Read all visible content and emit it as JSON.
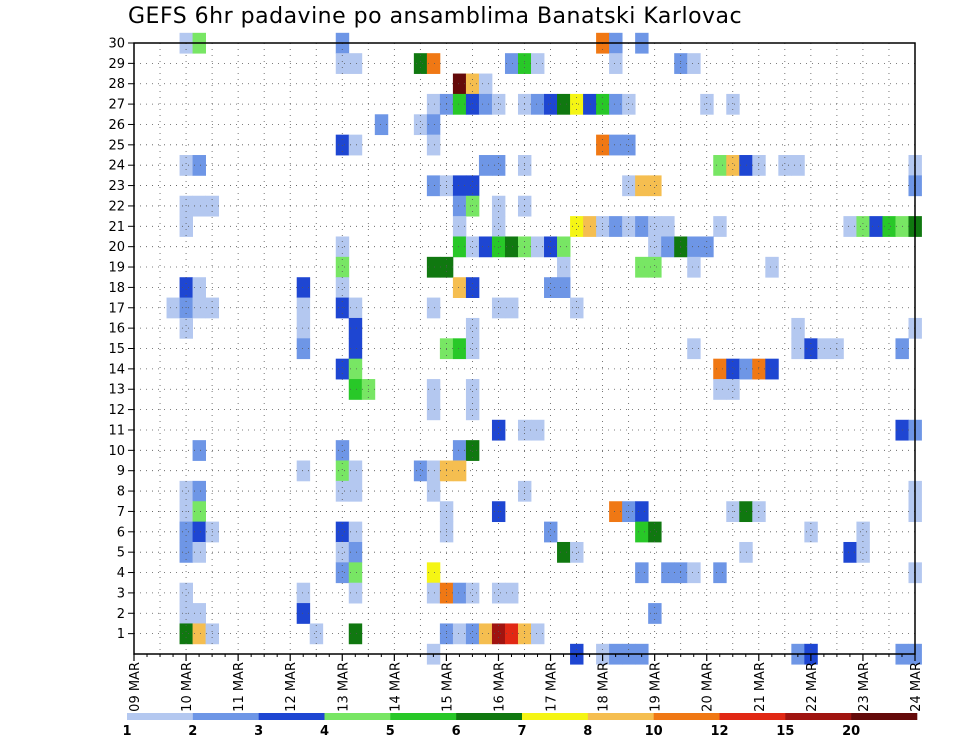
{
  "chart_data": {
    "type": "heatmap",
    "title": "GEFS 6hr padavine po ansamblima Banatski Karlovac",
    "x_tick_labels": [
      "09 MAR",
      "10 MAR",
      "11 MAR",
      "12 MAR",
      "13 MAR",
      "14 MAR",
      "15 MAR",
      "16 MAR",
      "17 MAR",
      "18 MAR",
      "19 MAR",
      "20 MAR",
      "21 MAR",
      "22 MAR",
      "23 MAR",
      "24 MAR"
    ],
    "x_units": "6-hour steps since 09 MAR 00Z",
    "xlim": [
      0,
      60
    ],
    "y_tick_labels": [
      "1",
      "2",
      "3",
      "4",
      "5",
      "6",
      "7",
      "8",
      "9",
      "10",
      "11",
      "12",
      "13",
      "14",
      "15",
      "16",
      "17",
      "18",
      "19",
      "20",
      "21",
      "22",
      "23",
      "24",
      "25",
      "26",
      "27",
      "28",
      "29",
      "30"
    ],
    "ylim": [
      0,
      30
    ],
    "grid": true,
    "colorbar": {
      "labels": [
        "1",
        "2",
        "3",
        "4",
        "5",
        "6",
        "7",
        "8",
        "10",
        "12",
        "15",
        "20"
      ],
      "colors": [
        "#b4c8f0",
        "#6e96e6",
        "#1e46d2",
        "#78e664",
        "#28c828",
        "#107810",
        "#f5f514",
        "#f5be50",
        "#f07814",
        "#e12814",
        "#a01410",
        "#640a0a"
      ]
    },
    "cells_format": "[x_step, member, color_class] with color_class 1..12 per colorbar",
    "cells": [
      [
        4,
        30,
        1
      ],
      [
        5,
        30,
        4
      ],
      [
        16,
        30,
        2
      ],
      [
        36,
        30,
        9
      ],
      [
        37,
        30,
        2
      ],
      [
        39,
        30,
        2
      ],
      [
        16,
        29,
        1
      ],
      [
        17,
        29,
        1
      ],
      [
        22,
        29,
        6
      ],
      [
        23,
        29,
        9
      ],
      [
        29,
        29,
        2
      ],
      [
        30,
        29,
        5
      ],
      [
        31,
        29,
        1
      ],
      [
        37,
        29,
        1
      ],
      [
        42,
        29,
        2
      ],
      [
        43,
        29,
        1
      ],
      [
        25,
        28,
        12
      ],
      [
        26,
        28,
        8
      ],
      [
        27,
        28,
        1
      ],
      [
        23,
        27,
        1
      ],
      [
        24,
        27,
        2
      ],
      [
        25,
        27,
        5
      ],
      [
        26,
        27,
        3
      ],
      [
        27,
        27,
        2
      ],
      [
        28,
        27,
        1
      ],
      [
        30,
        27,
        1
      ],
      [
        31,
        27,
        2
      ],
      [
        32,
        27,
        3
      ],
      [
        33,
        27,
        6
      ],
      [
        34,
        27,
        7
      ],
      [
        35,
        27,
        3
      ],
      [
        36,
        27,
        5
      ],
      [
        37,
        27,
        2
      ],
      [
        38,
        27,
        1
      ],
      [
        44,
        27,
        1
      ],
      [
        46,
        27,
        1
      ],
      [
        19,
        26,
        2
      ],
      [
        22,
        26,
        1
      ],
      [
        23,
        26,
        2
      ],
      [
        16,
        25,
        3
      ],
      [
        17,
        25,
        1
      ],
      [
        23,
        25,
        1
      ],
      [
        36,
        25,
        9
      ],
      [
        37,
        25,
        2
      ],
      [
        38,
        25,
        2
      ],
      [
        4,
        24,
        1
      ],
      [
        5,
        24,
        2
      ],
      [
        27,
        24,
        2
      ],
      [
        28,
        24,
        2
      ],
      [
        30,
        24,
        1
      ],
      [
        45,
        24,
        4
      ],
      [
        46,
        24,
        8
      ],
      [
        47,
        24,
        3
      ],
      [
        48,
        24,
        1
      ],
      [
        50,
        24,
        1
      ],
      [
        51,
        24,
        1
      ],
      [
        60,
        24,
        1
      ],
      [
        23,
        23,
        2
      ],
      [
        24,
        23,
        1
      ],
      [
        25,
        23,
        3
      ],
      [
        26,
        23,
        3
      ],
      [
        38,
        23,
        1
      ],
      [
        39,
        23,
        8
      ],
      [
        40,
        23,
        8
      ],
      [
        60,
        23,
        2
      ],
      [
        4,
        22,
        1
      ],
      [
        5,
        22,
        1
      ],
      [
        6,
        22,
        1
      ],
      [
        25,
        22,
        2
      ],
      [
        26,
        22,
        4
      ],
      [
        28,
        22,
        1
      ],
      [
        30,
        22,
        1
      ],
      [
        4,
        21,
        1
      ],
      [
        25,
        21,
        1
      ],
      [
        28,
        21,
        1
      ],
      [
        34,
        21,
        7
      ],
      [
        35,
        21,
        8
      ],
      [
        36,
        21,
        1
      ],
      [
        37,
        21,
        2
      ],
      [
        38,
        21,
        1
      ],
      [
        39,
        21,
        2
      ],
      [
        40,
        21,
        1
      ],
      [
        41,
        21,
        1
      ],
      [
        45,
        21,
        1
      ],
      [
        55,
        21,
        1
      ],
      [
        56,
        21,
        4
      ],
      [
        57,
        21,
        3
      ],
      [
        58,
        21,
        5
      ],
      [
        59,
        21,
        4
      ],
      [
        60,
        21,
        6
      ],
      [
        16,
        20,
        1
      ],
      [
        25,
        20,
        5
      ],
      [
        26,
        20,
        1
      ],
      [
        27,
        20,
        3
      ],
      [
        28,
        20,
        5
      ],
      [
        29,
        20,
        6
      ],
      [
        30,
        20,
        4
      ],
      [
        31,
        20,
        1
      ],
      [
        32,
        20,
        3
      ],
      [
        33,
        20,
        4
      ],
      [
        40,
        20,
        1
      ],
      [
        41,
        20,
        2
      ],
      [
        42,
        20,
        6
      ],
      [
        43,
        20,
        2
      ],
      [
        44,
        20,
        2
      ],
      [
        16,
        19,
        4
      ],
      [
        23,
        19,
        6
      ],
      [
        24,
        19,
        6
      ],
      [
        33,
        19,
        1
      ],
      [
        39,
        19,
        4
      ],
      [
        40,
        19,
        4
      ],
      [
        43,
        19,
        1
      ],
      [
        49,
        19,
        1
      ],
      [
        4,
        18,
        3
      ],
      [
        5,
        18,
        1
      ],
      [
        13,
        18,
        3
      ],
      [
        16,
        18,
        1
      ],
      [
        25,
        18,
        8
      ],
      [
        26,
        18,
        3
      ],
      [
        32,
        18,
        2
      ],
      [
        33,
        18,
        2
      ],
      [
        3,
        17,
        1
      ],
      [
        4,
        17,
        2
      ],
      [
        5,
        17,
        1
      ],
      [
        6,
        17,
        1
      ],
      [
        13,
        17,
        1
      ],
      [
        16,
        17,
        3
      ],
      [
        17,
        17,
        1
      ],
      [
        23,
        17,
        1
      ],
      [
        28,
        17,
        1
      ],
      [
        29,
        17,
        1
      ],
      [
        34,
        17,
        1
      ],
      [
        4,
        16,
        1
      ],
      [
        13,
        16,
        1
      ],
      [
        17,
        16,
        3
      ],
      [
        26,
        16,
        1
      ],
      [
        51,
        16,
        1
      ],
      [
        60,
        16,
        1
      ],
      [
        13,
        15,
        2
      ],
      [
        17,
        15,
        3
      ],
      [
        24,
        15,
        4
      ],
      [
        25,
        15,
        5
      ],
      [
        26,
        15,
        1
      ],
      [
        43,
        15,
        1
      ],
      [
        51,
        15,
        1
      ],
      [
        52,
        15,
        3
      ],
      [
        53,
        15,
        1
      ],
      [
        54,
        15,
        1
      ],
      [
        59,
        15,
        2
      ],
      [
        16,
        14,
        3
      ],
      [
        17,
        14,
        4
      ],
      [
        45,
        14,
        9
      ],
      [
        46,
        14,
        3
      ],
      [
        47,
        14,
        2
      ],
      [
        48,
        14,
        9
      ],
      [
        49,
        14,
        3
      ],
      [
        17,
        13,
        5
      ],
      [
        18,
        13,
        4
      ],
      [
        23,
        13,
        1
      ],
      [
        26,
        13,
        1
      ],
      [
        45,
        13,
        1
      ],
      [
        46,
        13,
        1
      ],
      [
        23,
        12,
        1
      ],
      [
        26,
        12,
        1
      ],
      [
        28,
        11,
        3
      ],
      [
        30,
        11,
        1
      ],
      [
        31,
        11,
        1
      ],
      [
        59,
        11,
        3
      ],
      [
        60,
        11,
        2
      ],
      [
        5,
        10,
        2
      ],
      [
        16,
        10,
        2
      ],
      [
        25,
        10,
        2
      ],
      [
        26,
        10,
        6
      ],
      [
        13,
        9,
        1
      ],
      [
        16,
        9,
        4
      ],
      [
        17,
        9,
        1
      ],
      [
        22,
        9,
        2
      ],
      [
        23,
        9,
        1
      ],
      [
        24,
        9,
        8
      ],
      [
        25,
        9,
        8
      ],
      [
        4,
        8,
        1
      ],
      [
        5,
        8,
        2
      ],
      [
        16,
        8,
        1
      ],
      [
        17,
        8,
        1
      ],
      [
        23,
        8,
        1
      ],
      [
        30,
        8,
        1
      ],
      [
        60,
        8,
        1
      ],
      [
        4,
        7,
        1
      ],
      [
        5,
        7,
        4
      ],
      [
        24,
        7,
        1
      ],
      [
        28,
        7,
        3
      ],
      [
        37,
        7,
        9
      ],
      [
        38,
        7,
        2
      ],
      [
        39,
        7,
        3
      ],
      [
        46,
        7,
        1
      ],
      [
        47,
        7,
        6
      ],
      [
        48,
        7,
        1
      ],
      [
        60,
        7,
        1
      ],
      [
        4,
        6,
        2
      ],
      [
        5,
        6,
        3
      ],
      [
        6,
        6,
        1
      ],
      [
        16,
        6,
        3
      ],
      [
        17,
        6,
        1
      ],
      [
        24,
        6,
        1
      ],
      [
        32,
        6,
        2
      ],
      [
        39,
        6,
        5
      ],
      [
        40,
        6,
        6
      ],
      [
        52,
        6,
        1
      ],
      [
        56,
        6,
        1
      ],
      [
        4,
        5,
        2
      ],
      [
        5,
        5,
        1
      ],
      [
        16,
        5,
        1
      ],
      [
        17,
        5,
        2
      ],
      [
        33,
        5,
        6
      ],
      [
        34,
        5,
        1
      ],
      [
        47,
        5,
        1
      ],
      [
        55,
        5,
        3
      ],
      [
        56,
        5,
        1
      ],
      [
        16,
        4,
        2
      ],
      [
        17,
        4,
        4
      ],
      [
        23,
        4,
        7
      ],
      [
        39,
        4,
        2
      ],
      [
        41,
        4,
        2
      ],
      [
        42,
        4,
        2
      ],
      [
        43,
        4,
        1
      ],
      [
        45,
        4,
        2
      ],
      [
        60,
        4,
        1
      ],
      [
        4,
        3,
        1
      ],
      [
        13,
        3,
        1
      ],
      [
        17,
        3,
        1
      ],
      [
        23,
        3,
        1
      ],
      [
        24,
        3,
        9
      ],
      [
        25,
        3,
        2
      ],
      [
        26,
        3,
        1
      ],
      [
        28,
        3,
        1
      ],
      [
        29,
        3,
        1
      ],
      [
        4,
        2,
        1
      ],
      [
        5,
        2,
        1
      ],
      [
        13,
        2,
        3
      ],
      [
        40,
        2,
        2
      ],
      [
        4,
        1,
        6
      ],
      [
        5,
        1,
        8
      ],
      [
        6,
        1,
        1
      ],
      [
        14,
        1,
        1
      ],
      [
        17,
        1,
        6
      ],
      [
        24,
        1,
        2
      ],
      [
        25,
        1,
        1
      ],
      [
        26,
        1,
        2
      ],
      [
        27,
        1,
        8
      ],
      [
        28,
        1,
        11
      ],
      [
        29,
        1,
        10
      ],
      [
        30,
        1,
        8
      ],
      [
        31,
        1,
        1
      ],
      [
        23,
        0,
        1
      ],
      [
        34,
        0,
        3
      ],
      [
        36,
        0,
        1
      ],
      [
        37,
        0,
        2
      ],
      [
        38,
        0,
        2
      ],
      [
        39,
        0,
        2
      ],
      [
        51,
        0,
        2
      ],
      [
        52,
        0,
        3
      ],
      [
        59,
        0,
        2
      ],
      [
        60,
        0,
        2
      ]
    ]
  }
}
